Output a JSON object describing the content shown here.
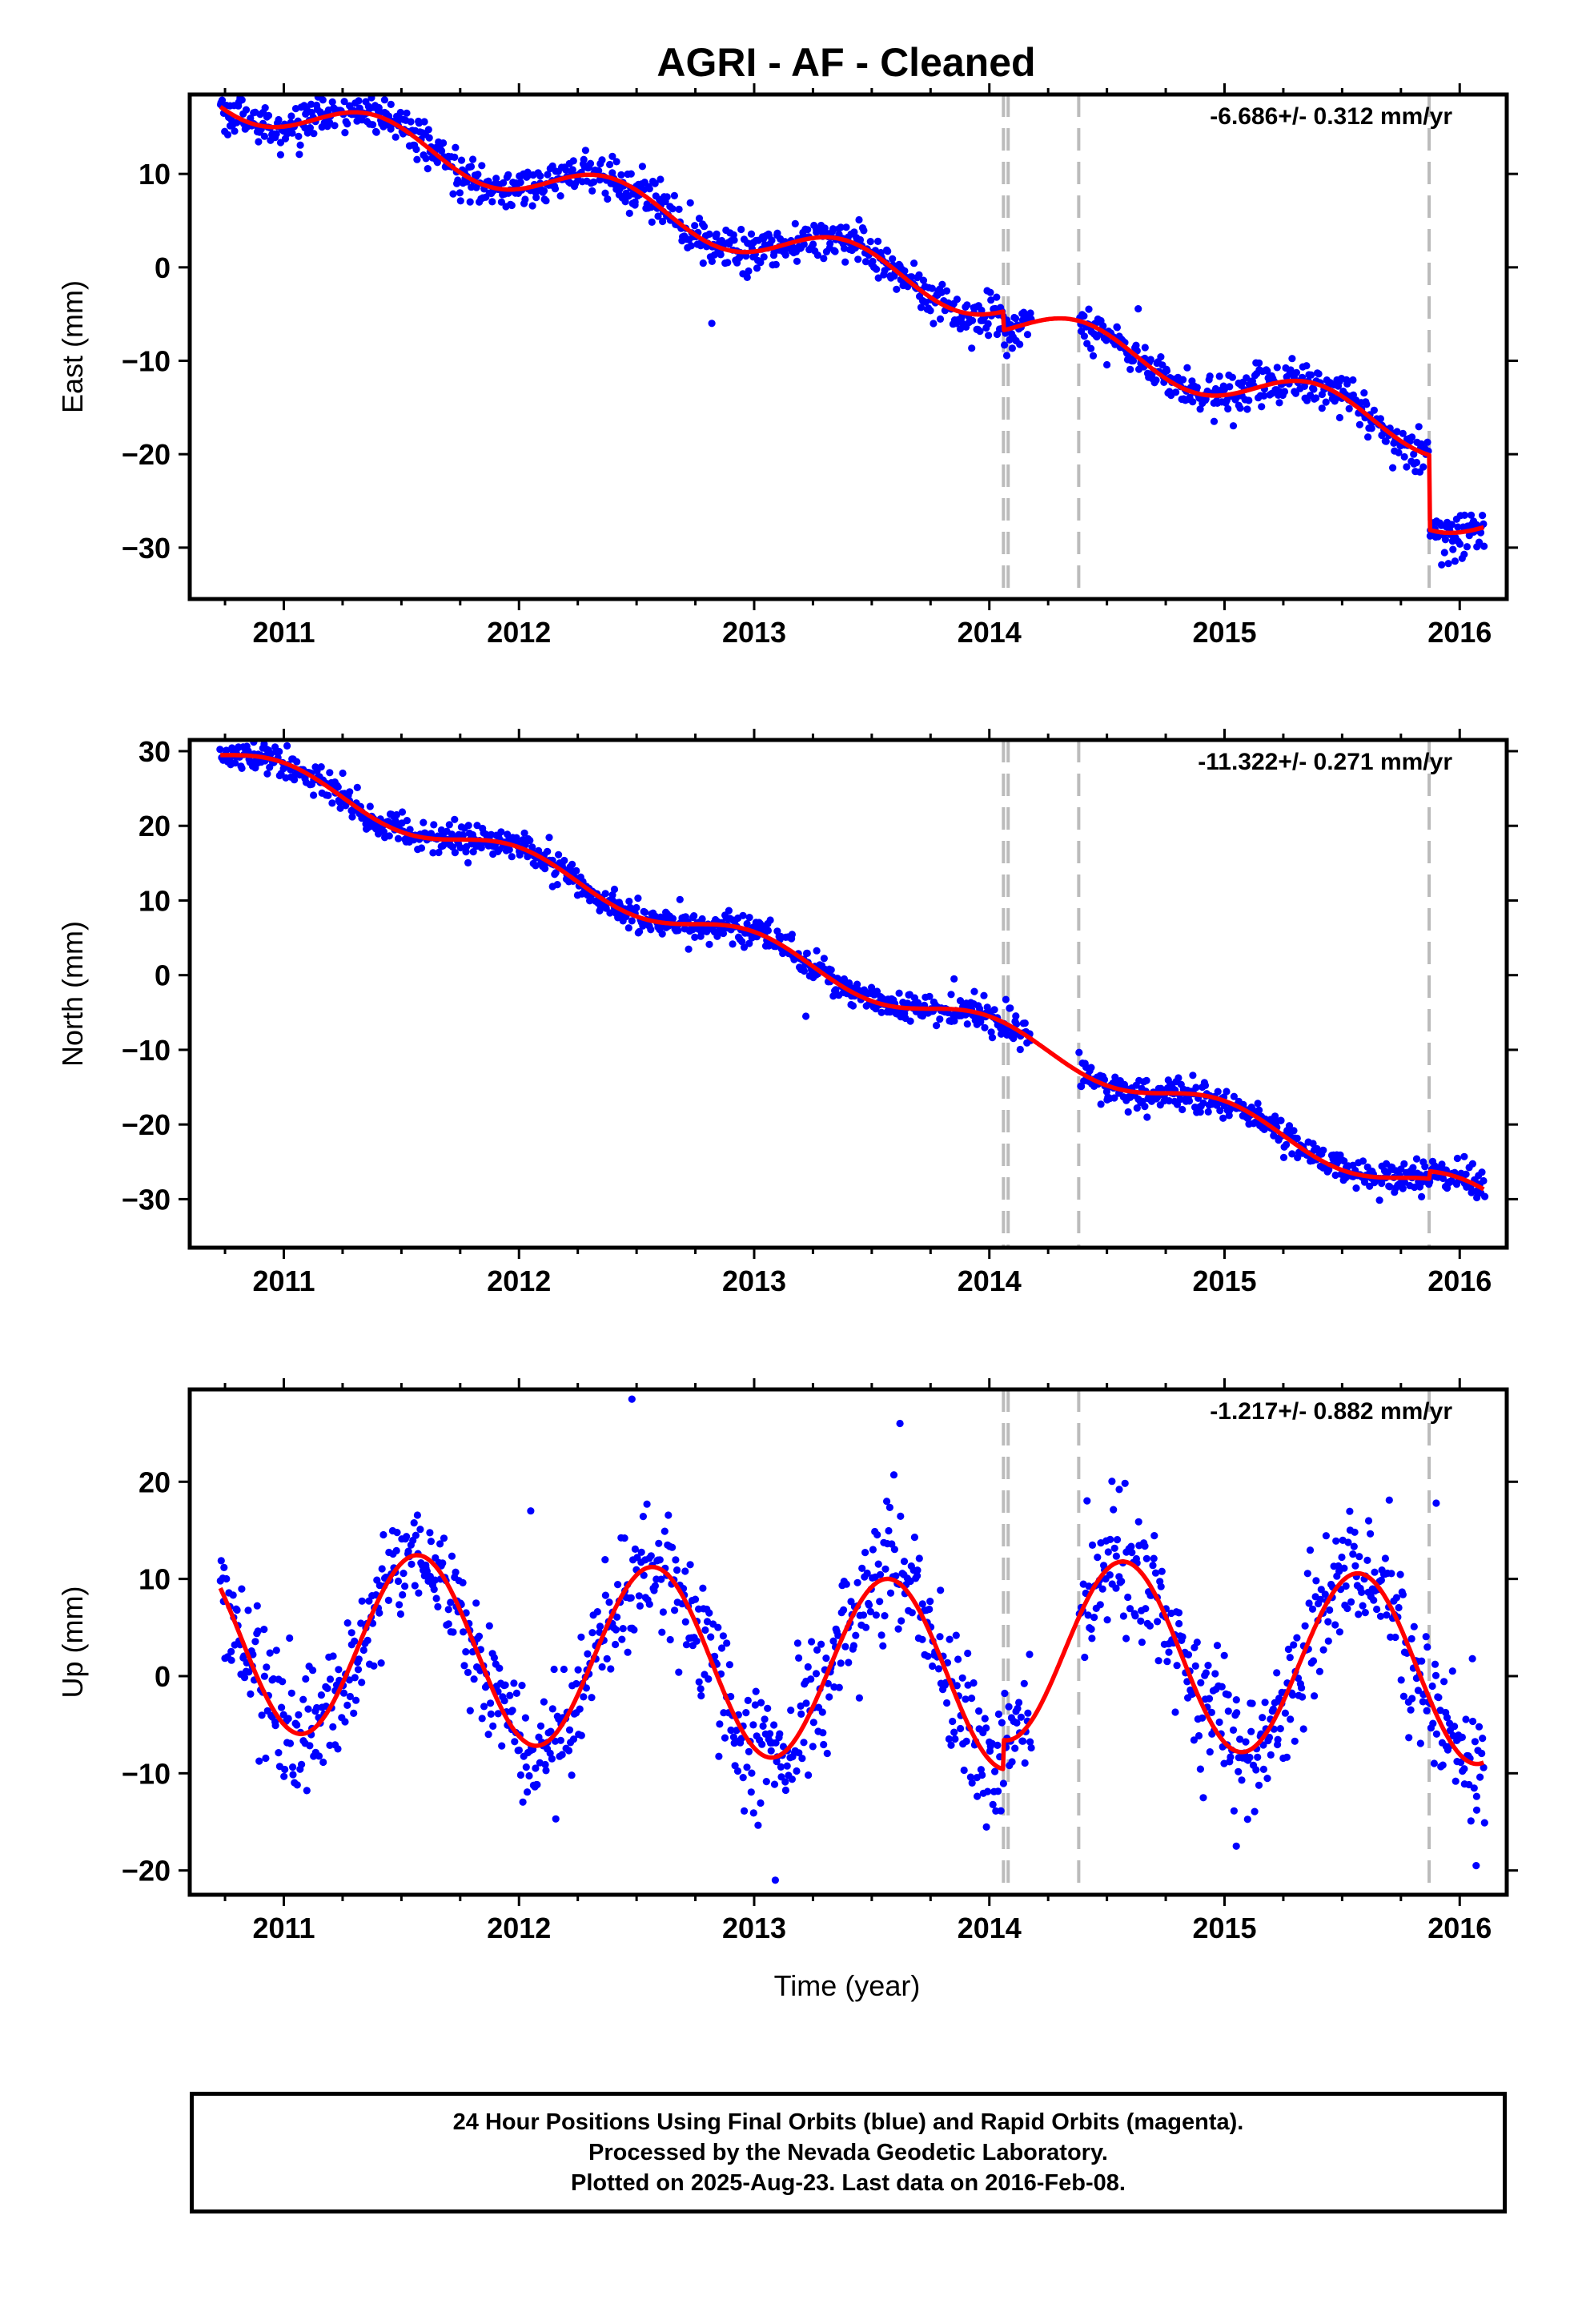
{
  "title": "AGRI  - AF - Cleaned",
  "footer": {
    "line1": "24 Hour Positions Using Final Orbits (blue) and Rapid Orbits (magenta).",
    "line2": "Processed by the Nevada Geodetic Laboratory.",
    "line3": "Plotted on 2025-Aug-23. Last data on 2016-Feb-08."
  },
  "colors": {
    "data_points": "#0000ff",
    "model_fit": "#ff0000",
    "event_lines": "#bbbbbb",
    "frame": "#000000"
  },
  "chart_data": [
    {
      "type": "scatter",
      "panel": "east",
      "title": "",
      "xlabel": "",
      "ylabel": "East (mm)",
      "rate_label": "-6.686+/- 0.312 mm/yr",
      "xlim": [
        2010.6,
        2016.2
      ],
      "ylim": [
        -35.5,
        18.5
      ],
      "x_ticks": [
        2011,
        2012,
        2013,
        2014,
        2015,
        2016
      ],
      "y_ticks": [
        -30,
        -20,
        -10,
        0,
        10
      ],
      "event_lines": [
        2014.06,
        2014.08,
        2014.38,
        2015.87
      ],
      "model": {
        "rate": -6.686,
        "ref_year": 2013.0,
        "offset": 3.3,
        "annual": {
          "amp": 2.2,
          "peak_year_frac": 0.38
        },
        "jumps": [
          {
            "year": 2014.06,
            "size": -2.0
          },
          {
            "year": 2015.87,
            "size": -8.0
          }
        ],
        "gaps": [
          [
            2014.18,
            2014.38
          ]
        ],
        "scatter_sigma": 1.1,
        "cadence_days": 1.6,
        "outliers": [
          [
            2012.82,
            -6.0
          ]
        ]
      },
      "series": [
        {
          "name": "24 Hour Positions (Final Orbits)",
          "color": "#0000ff",
          "kind": "points"
        },
        {
          "name": "Model fit",
          "color": "#ff0000",
          "kind": "line"
        }
      ]
    },
    {
      "type": "scatter",
      "panel": "north",
      "title": "",
      "xlabel": "",
      "ylabel": "North (mm)",
      "rate_label": "-11.322+/- 0.271 mm/yr",
      "xlim": [
        2010.6,
        2016.2
      ],
      "ylim": [
        -36.5,
        31.5
      ],
      "x_ticks": [
        2011,
        2012,
        2013,
        2014,
        2015,
        2016
      ],
      "y_ticks": [
        -30,
        -20,
        -10,
        0,
        10,
        20,
        30
      ],
      "event_lines": [
        2014.06,
        2014.08,
        2014.38,
        2015.87
      ],
      "model": {
        "rate": -11.322,
        "ref_year": 2013.0,
        "offset": 4.0,
        "annual": {
          "amp": 1.8,
          "peak_year_frac": 0.0
        },
        "jumps": [
          {
            "year": 2015.87,
            "size": 1.0
          }
        ],
        "gaps": [
          [
            2014.18,
            2014.38
          ]
        ],
        "scatter_sigma": 1.0,
        "cadence_days": 1.6,
        "outliers": [
          [
            2013.22,
            -5.5
          ],
          [
            2013.85,
            -0.5
          ]
        ]
      },
      "series": [
        {
          "name": "24 Hour Positions (Final Orbits)",
          "color": "#0000ff",
          "kind": "points"
        },
        {
          "name": "Model fit",
          "color": "#ff0000",
          "kind": "line"
        }
      ]
    },
    {
      "type": "scatter",
      "panel": "up",
      "title": "",
      "xlabel": "Time (year)",
      "ylabel": "Up (mm)",
      "rate_label": "-1.217+/- 0.882 mm/yr",
      "xlim": [
        2010.6,
        2016.2
      ],
      "ylim": [
        -22.5,
        29.5
      ],
      "x_ticks": [
        2011,
        2012,
        2013,
        2014,
        2015,
        2016
      ],
      "y_ticks": [
        -20,
        -10,
        0,
        10,
        20
      ],
      "event_lines": [
        2014.06,
        2014.08,
        2014.38,
        2015.87
      ],
      "model": {
        "rate": -1.217,
        "ref_year": 2013.0,
        "offset": 1.2,
        "annual": {
          "amp": 9.5,
          "peak_year_frac": 0.57
        },
        "jumps": [
          {
            "year": 2014.06,
            "size": 3.0
          }
        ],
        "gaps": [
          [
            2014.18,
            2014.38
          ]
        ],
        "scatter_sigma": 3.3,
        "cadence_days": 1.6,
        "outliers": [
          [
            2012.48,
            28.5
          ],
          [
            2013.62,
            26.0
          ],
          [
            2012.05,
            17.0
          ],
          [
            2013.09,
            -21.0
          ],
          [
            2015.9,
            17.8
          ],
          [
            2016.07,
            -19.5
          ],
          [
            2015.05,
            -17.5
          ]
        ]
      },
      "series": [
        {
          "name": "24 Hour Positions (Final Orbits)",
          "color": "#0000ff",
          "kind": "points"
        },
        {
          "name": "Model fit",
          "color": "#ff0000",
          "kind": "line"
        }
      ]
    }
  ]
}
